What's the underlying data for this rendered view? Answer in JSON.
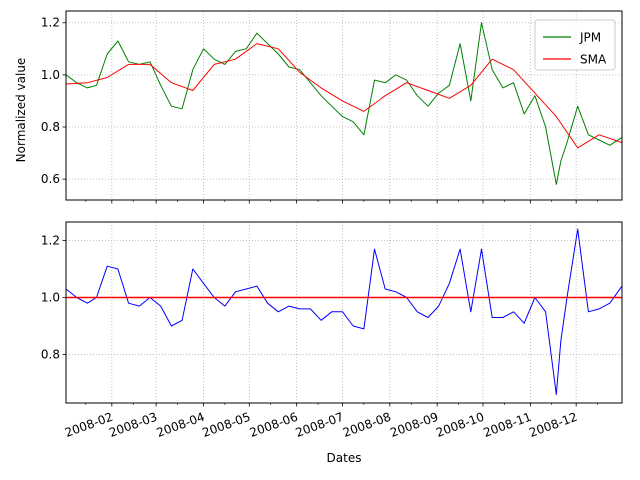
{
  "chart_data": [
    {
      "type": "line",
      "ylabel": "Normalized value",
      "xlabel": "",
      "ylim": [
        0.52,
        1.245
      ],
      "yticks": [
        0.6,
        0.8,
        1.0,
        1.2
      ],
      "ytick_labels": [
        "0.6",
        "0.8",
        "1.0",
        "1.2"
      ],
      "grid": true,
      "legend": "top-right",
      "series": [
        {
          "name": "JPM",
          "color": "#008000",
          "x": [
            "2008-01-02",
            "2008-01-09",
            "2008-01-16",
            "2008-01-22",
            "2008-01-29",
            "2008-02-05",
            "2008-02-12",
            "2008-02-19",
            "2008-02-26",
            "2008-03-04",
            "2008-03-11",
            "2008-03-18",
            "2008-03-25",
            "2008-04-01",
            "2008-04-08",
            "2008-04-15",
            "2008-04-22",
            "2008-04-29",
            "2008-05-06",
            "2008-05-13",
            "2008-05-20",
            "2008-05-27",
            "2008-06-03",
            "2008-06-10",
            "2008-06-17",
            "2008-06-24",
            "2008-07-01",
            "2008-07-08",
            "2008-07-15",
            "2008-07-22",
            "2008-07-29",
            "2008-08-05",
            "2008-08-12",
            "2008-08-19",
            "2008-08-26",
            "2008-09-02",
            "2008-09-09",
            "2008-09-16",
            "2008-09-23",
            "2008-09-30",
            "2008-10-07",
            "2008-10-14",
            "2008-10-21",
            "2008-10-28",
            "2008-11-04",
            "2008-11-11",
            "2008-11-18",
            "2008-11-21",
            "2008-11-25",
            "2008-12-02",
            "2008-12-09",
            "2008-12-16",
            "2008-12-23",
            "2008-12-31"
          ],
          "values": [
            1.0,
            0.97,
            0.95,
            0.96,
            1.08,
            1.13,
            1.05,
            1.04,
            1.05,
            0.96,
            0.88,
            0.87,
            1.02,
            1.1,
            1.06,
            1.04,
            1.09,
            1.1,
            1.16,
            1.12,
            1.08,
            1.03,
            1.02,
            0.97,
            0.92,
            0.88,
            0.84,
            0.82,
            0.77,
            0.98,
            0.97,
            1.0,
            0.98,
            0.92,
            0.88,
            0.93,
            0.96,
            1.12,
            0.9,
            1.2,
            1.02,
            0.95,
            0.97,
            0.85,
            0.92,
            0.8,
            0.58,
            0.67,
            0.74,
            0.88,
            0.77,
            0.75,
            0.73,
            0.76
          ]
        },
        {
          "name": "SMA",
          "color": "#ff0000",
          "x": [
            "2008-01-02",
            "2008-01-16",
            "2008-01-29",
            "2008-02-12",
            "2008-02-26",
            "2008-03-11",
            "2008-03-25",
            "2008-04-08",
            "2008-04-22",
            "2008-05-06",
            "2008-05-20",
            "2008-06-03",
            "2008-06-17",
            "2008-07-01",
            "2008-07-15",
            "2008-07-29",
            "2008-08-12",
            "2008-08-26",
            "2008-09-09",
            "2008-09-23",
            "2008-10-07",
            "2008-10-21",
            "2008-11-04",
            "2008-11-18",
            "2008-12-02",
            "2008-12-16",
            "2008-12-31"
          ],
          "values": [
            0.965,
            0.97,
            0.99,
            1.04,
            1.04,
            0.97,
            0.94,
            1.04,
            1.06,
            1.12,
            1.1,
            1.01,
            0.95,
            0.9,
            0.86,
            0.92,
            0.97,
            0.94,
            0.91,
            0.96,
            1.06,
            1.02,
            0.93,
            0.84,
            0.72,
            0.77,
            0.74
          ]
        }
      ]
    },
    {
      "type": "line",
      "xlabel": "Dates",
      "ylabel": "",
      "ylim": [
        0.63,
        1.265
      ],
      "yticks": [
        0.8,
        1.0,
        1.2
      ],
      "ytick_labels": [
        "0.8",
        "1.0",
        "1.2"
      ],
      "grid": true,
      "xtick_labels": [
        "2008-02",
        "2008-03",
        "2008-04",
        "2008-05",
        "2008-06",
        "2008-07",
        "2008-08",
        "2008-09",
        "2008-10",
        "2008-11",
        "2008-12"
      ],
      "xlim": [
        "2008-01-02",
        "2008-12-31"
      ],
      "series": [
        {
          "name": "",
          "color": "#0000ff",
          "x": [
            "2008-01-02",
            "2008-01-09",
            "2008-01-16",
            "2008-01-22",
            "2008-01-29",
            "2008-02-05",
            "2008-02-12",
            "2008-02-19",
            "2008-02-26",
            "2008-03-04",
            "2008-03-11",
            "2008-03-18",
            "2008-03-25",
            "2008-04-01",
            "2008-04-08",
            "2008-04-15",
            "2008-04-22",
            "2008-04-29",
            "2008-05-06",
            "2008-05-13",
            "2008-05-20",
            "2008-05-27",
            "2008-06-03",
            "2008-06-10",
            "2008-06-17",
            "2008-06-24",
            "2008-07-01",
            "2008-07-08",
            "2008-07-15",
            "2008-07-22",
            "2008-07-29",
            "2008-08-05",
            "2008-08-12",
            "2008-08-19",
            "2008-08-26",
            "2008-09-02",
            "2008-09-09",
            "2008-09-16",
            "2008-09-23",
            "2008-09-30",
            "2008-10-07",
            "2008-10-14",
            "2008-10-21",
            "2008-10-28",
            "2008-11-04",
            "2008-11-11",
            "2008-11-18",
            "2008-11-21",
            "2008-11-25",
            "2008-12-02",
            "2008-12-09",
            "2008-12-16",
            "2008-12-23",
            "2008-12-31"
          ],
          "values": [
            1.03,
            1.0,
            0.98,
            1.0,
            1.11,
            1.1,
            0.98,
            0.97,
            1.0,
            0.97,
            0.9,
            0.92,
            1.1,
            1.05,
            1.0,
            0.97,
            1.02,
            1.03,
            1.04,
            0.98,
            0.95,
            0.97,
            0.96,
            0.96,
            0.92,
            0.95,
            0.95,
            0.9,
            0.89,
            1.17,
            1.03,
            1.02,
            1.0,
            0.95,
            0.93,
            0.97,
            1.05,
            1.17,
            0.95,
            1.17,
            0.93,
            0.93,
            0.95,
            0.91,
            1.0,
            0.95,
            0.66,
            0.85,
            1.0,
            1.24,
            0.95,
            0.96,
            0.98,
            1.04
          ]
        },
        {
          "name": "",
          "color": "#ff0000",
          "x": [
            "2008-01-02",
            "2008-12-31"
          ],
          "values": [
            1.0,
            1.0
          ]
        }
      ]
    }
  ]
}
